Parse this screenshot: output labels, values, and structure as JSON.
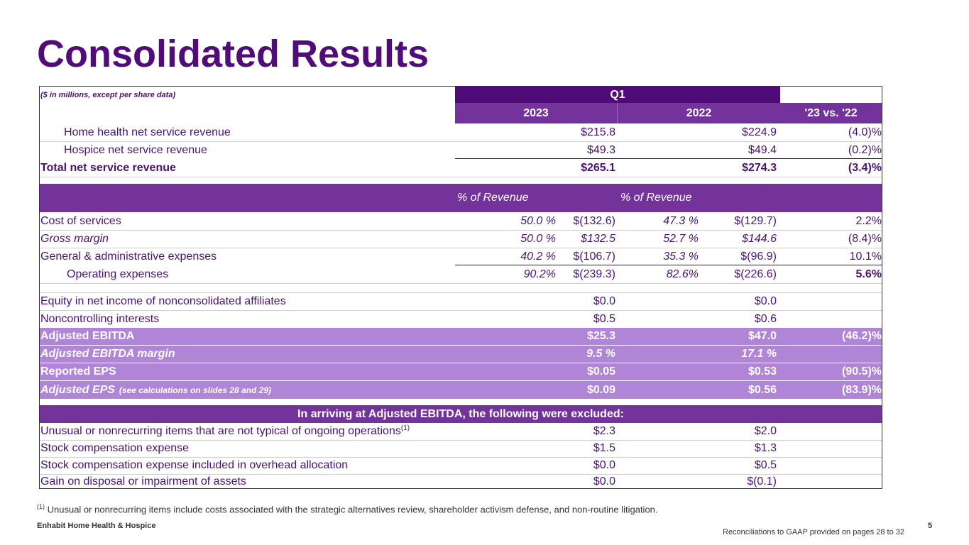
{
  "title": "Consolidated Results",
  "header": {
    "units_note": "($ in millions, except per share data)",
    "period": "Q1",
    "col_2023": "2023",
    "col_2022": "2022",
    "col_change": "'23 vs. '22"
  },
  "revenue": [
    {
      "label": "Home health net service revenue",
      "v2023": "$215.8",
      "v2022": "$224.9",
      "change": "(4.0)%"
    },
    {
      "label": "Hospice net service revenue",
      "v2023": "$49.3",
      "v2022": "$49.4",
      "change": "(0.2)%"
    },
    {
      "label": "Total net service revenue",
      "v2023": "$265.1",
      "v2022": "$274.3",
      "change": "(3.4)%"
    }
  ],
  "pct_header": {
    "pct_2023": "% of Revenue",
    "pct_2022": "% of Revenue"
  },
  "expenses": [
    {
      "label": "Cost of services",
      "p2023": "50.0 %",
      "v2023": "$(132.6)",
      "p2022": "47.3 %",
      "v2022": "$(129.7)",
      "change": "2.2%"
    },
    {
      "label": "Gross margin",
      "p2023": "50.0 %",
      "v2023": "$132.5",
      "p2022": "52.7 %",
      "v2022": "$144.6",
      "change": "(8.4)%"
    },
    {
      "label": "General & administrative expenses",
      "p2023": "40.2 %",
      "v2023": "$(106.7)",
      "p2022": "35.3 %",
      "v2022": "$(96.9)",
      "change": "10.1%"
    },
    {
      "label": "Operating expenses",
      "p2023": "90.2%",
      "v2023": "$(239.3)",
      "p2022": "82.6%",
      "v2022": "$(226.6)",
      "change": "5.6%"
    }
  ],
  "other": [
    {
      "label": "Equity in net income of nonconsolidated affiliates",
      "v2023": "$0.0",
      "v2022": "$0.0"
    },
    {
      "label": "Noncontrolling interests",
      "v2023": "$0.5",
      "v2022": "$0.6"
    }
  ],
  "highlights": [
    {
      "label": "Adjusted EBITDA",
      "v2023": "$25.3",
      "v2022": "$47.0",
      "change": "(46.2)%"
    },
    {
      "label": "Adjusted EBITDA margin",
      "v2023": "9.5 %",
      "v2022": "17.1 %",
      "change": ""
    },
    {
      "label": "Reported EPS",
      "v2023": "$0.05",
      "v2022": "$0.53",
      "change": "(90.5)%"
    },
    {
      "label": "Adjusted EPS",
      "label_note": "(see calculations on slides 28 and 29)",
      "v2023": "$0.09",
      "v2022": "$0.56",
      "change": "(83.9)%"
    }
  ],
  "excluded_header": "In arriving at Adjusted EBITDA, the following were excluded:",
  "excluded": [
    {
      "label": "Unusual or nonrecurring items that are not typical of ongoing operations",
      "sup": "(1)",
      "v2023": "$2.3",
      "v2022": "$2.0"
    },
    {
      "label": "Stock compensation expense",
      "v2023": "$1.5",
      "v2022": "$1.3"
    },
    {
      "label": "Stock compensation expense included in overhead allocation",
      "v2023": "$0.0",
      "v2022": "$0.5"
    },
    {
      "label": "Gain on disposal or impairment of assets",
      "v2023": "$0.0",
      "v2022": "$(0.1)"
    }
  ],
  "footnote": {
    "sup": "(1)",
    "text": "Unusual or nonrecurring items include costs associated with the strategic alternatives review, shareholder activism defense, and non-routine litigation."
  },
  "footer": {
    "company": "Enhabit Home Health & Hospice",
    "reconciliation": "Reconciliations to GAAP provided on pages 28 to 32",
    "page": "5"
  }
}
